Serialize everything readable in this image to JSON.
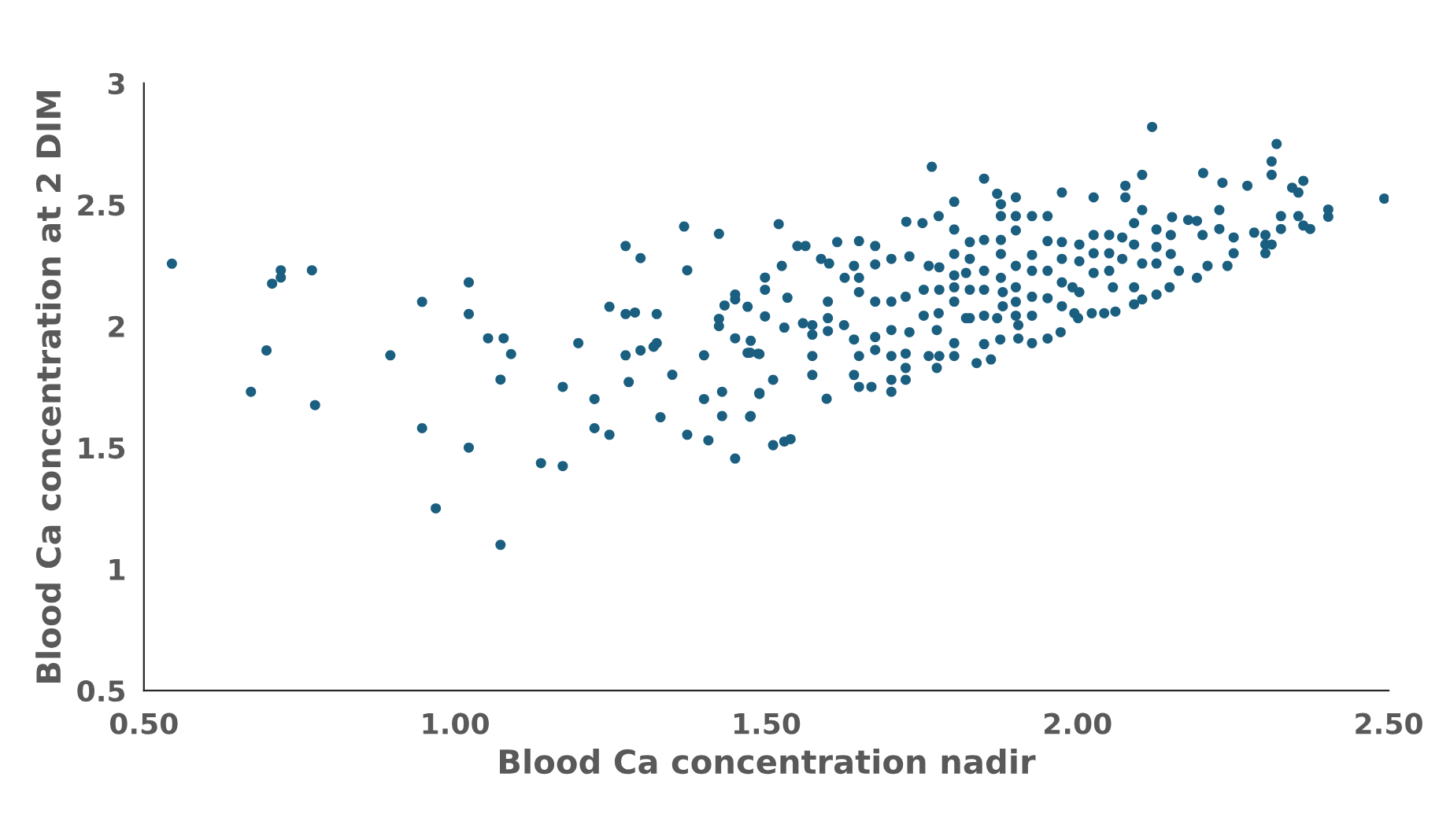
{
  "chart_data": {
    "type": "scatter",
    "xlabel": "Blood Ca concentration nadir",
    "ylabel": "Blood Ca concentration at 2 DIM",
    "xlim": [
      0.5,
      2.5
    ],
    "xticks": [
      {
        "value": 0.5,
        "label": "0.50"
      },
      {
        "value": 1.0,
        "label": "1.00"
      },
      {
        "value": 1.5,
        "label": "1.50"
      },
      {
        "value": 2.0,
        "label": "2.00"
      },
      {
        "value": 2.5,
        "label": "2.50"
      }
    ],
    "ylim": [
      0.5,
      3
    ],
    "yticks": [
      0.5,
      1,
      1.5,
      2,
      2.5,
      3
    ],
    "grid": false,
    "legend": false,
    "marker": "circle",
    "series": [
      {
        "color": "#1a5e80",
        "x": [
          0.545,
          0.706,
          0.72,
          0.72,
          0.77,
          0.697,
          0.672,
          0.775,
          0.896,
          0.947,
          0.947,
          0.969,
          1.022,
          1.022,
          1.022,
          1.053,
          1.078,
          1.09,
          1.073,
          1.073,
          1.138,
          1.173,
          1.173,
          1.198,
          1.224,
          1.224,
          1.248,
          1.248,
          1.274,
          1.298,
          1.274,
          1.289,
          1.324,
          1.274,
          1.298,
          1.279,
          1.319,
          1.324,
          1.33,
          1.349,
          1.368,
          1.373,
          1.373,
          1.4,
          1.4,
          1.407,
          1.424,
          1.424,
          1.424,
          1.433,
          1.45,
          1.45,
          1.45,
          1.429,
          1.429,
          1.45,
          1.47,
          1.475,
          1.47,
          1.489,
          1.475,
          1.489,
          1.498,
          1.498,
          1.498,
          1.52,
          1.766,
          1.85,
          1.871,
          1.901,
          1.975,
          2.026,
          2.077,
          2.104,
          2.077,
          2.104,
          2.202,
          2.233,
          2.273,
          2.312,
          2.312,
          2.12,
          2.32,
          2.345,
          2.355,
          2.363,
          2.403,
          2.403,
          2.493,
          2.327,
          2.355,
          2.363,
          2.374,
          2.284,
          2.302,
          2.302,
          2.302,
          2.312,
          2.327,
          2.228,
          2.228,
          2.251,
          2.251,
          2.241,
          2.209,
          2.192,
          2.201,
          2.178,
          2.192,
          2.152,
          2.127,
          2.127,
          2.127,
          2.15,
          2.15,
          2.163,
          2.148,
          2.127,
          2.104,
          2.091,
          2.091,
          2.104,
          2.091,
          2.091,
          2.072,
          2.072,
          2.051,
          2.051,
          2.051,
          2.057,
          2.061,
          2.043,
          2.023,
          2.026,
          2.026,
          2.026,
          2.003,
          2.003,
          2.003,
          2.001,
          1.975,
          1.975,
          1.975,
          1.975,
          1.992,
          1.995,
          1.973,
          1.952,
          1.952,
          1.952,
          1.952,
          1.952,
          1.927,
          1.927,
          1.927,
          1.927,
          1.927,
          1.927,
          1.905,
          1.905,
          1.901,
          1.901,
          1.901,
          1.901,
          1.901,
          1.901,
          1.877,
          1.877,
          1.877,
          1.877,
          1.877,
          1.88,
          1.88,
          1.871,
          1.876,
          1.85,
          1.85,
          1.85,
          1.85,
          1.85,
          1.827,
          1.827,
          1.827,
          1.827,
          1.838,
          1.861,
          1.802,
          1.802,
          1.802,
          1.802,
          1.802,
          1.802,
          1.802,
          1.802,
          1.821,
          1.821,
          1.777,
          1.751,
          1.725,
          1.778,
          1.761,
          1.778,
          1.753,
          1.753,
          1.777,
          1.774,
          1.761,
          1.778,
          1.774,
          1.73,
          1.73,
          1.701,
          1.701,
          1.701,
          1.701,
          1.701,
          1.701,
          1.724,
          1.724,
          1.724,
          1.724,
          1.675,
          1.675,
          1.675,
          1.675,
          1.675,
          1.649,
          1.649,
          1.649,
          1.649,
          1.669,
          1.649,
          1.641,
          1.641,
          1.641,
          1.614,
          1.601,
          1.599,
          1.599,
          1.599,
          1.597,
          1.626,
          1.625,
          1.574,
          1.574,
          1.574,
          1.574,
          1.559,
          1.588,
          1.55,
          1.563,
          1.525,
          1.534,
          1.529,
          1.487,
          1.474,
          1.511,
          1.489,
          1.474,
          1.511,
          1.529,
          1.539
        ],
        "values": [
          2.257,
          2.175,
          2.23,
          2.2,
          2.23,
          1.9,
          1.73,
          1.675,
          1.88,
          2.1,
          1.58,
          1.25,
          2.18,
          2.05,
          1.5,
          1.95,
          1.95,
          1.885,
          1.78,
          1.1,
          1.436,
          1.424,
          1.75,
          1.93,
          1.7,
          1.58,
          1.553,
          2.08,
          2.33,
          2.28,
          2.05,
          2.056,
          2.05,
          1.88,
          1.9,
          1.77,
          1.915,
          1.93,
          1.625,
          1.8,
          2.41,
          2.23,
          1.553,
          1.88,
          1.7,
          1.53,
          2.38,
          2.03,
          2.0,
          2.085,
          2.13,
          2.11,
          1.95,
          1.73,
          1.63,
          1.455,
          2.08,
          1.94,
          1.89,
          1.885,
          1.63,
          1.725,
          2.2,
          2.15,
          2.04,
          2.42,
          2.656,
          2.607,
          2.545,
          2.53,
          2.55,
          2.53,
          2.578,
          2.623,
          2.53,
          2.478,
          2.63,
          2.59,
          2.578,
          2.678,
          2.623,
          2.82,
          2.75,
          2.57,
          2.55,
          2.598,
          2.48,
          2.45,
          2.525,
          2.453,
          2.453,
          2.414,
          2.4,
          2.385,
          2.375,
          2.336,
          2.3,
          2.336,
          2.4,
          2.478,
          2.4,
          2.365,
          2.3,
          2.248,
          2.248,
          2.199,
          2.375,
          2.437,
          2.433,
          2.449,
          2.398,
          2.326,
          2.258,
          2.375,
          2.297,
          2.228,
          2.16,
          2.13,
          2.11,
          2.424,
          2.336,
          2.258,
          2.16,
          2.09,
          2.365,
          2.277,
          2.375,
          2.3,
          2.228,
          2.16,
          2.06,
          2.053,
          2.053,
          2.375,
          2.3,
          2.219,
          2.336,
          2.267,
          2.14,
          2.033,
          2.346,
          2.277,
          2.18,
          2.082,
          2.16,
          2.053,
          1.975,
          1.949,
          2.453,
          2.35,
          2.228,
          2.115,
          2.453,
          2.293,
          2.228,
          2.121,
          2.043,
          1.93,
          1.949,
          2.004,
          2.453,
          2.394,
          2.248,
          2.16,
          2.1,
          2.043,
          2.502,
          2.453,
          2.355,
          2.297,
          2.199,
          2.14,
          2.082,
          2.033,
          1.945,
          2.355,
          2.228,
          2.15,
          2.043,
          1.926,
          2.346,
          2.277,
          2.15,
          2.033,
          1.848,
          1.863,
          2.512,
          2.398,
          2.297,
          2.209,
          2.16,
          2.101,
          1.93,
          1.877,
          2.219,
          2.033,
          2.453,
          2.424,
          2.43,
          2.242,
          2.248,
          2.15,
          2.15,
          2.043,
          2.053,
          1.984,
          1.877,
          1.877,
          1.828,
          2.287,
          1.975,
          2.277,
          2.101,
          1.984,
          1.877,
          1.779,
          1.73,
          2.121,
          1.887,
          1.828,
          1.779,
          2.33,
          2.254,
          2.101,
          1.955,
          1.902,
          2.35,
          2.199,
          2.14,
          1.877,
          1.75,
          1.75,
          2.248,
          1.945,
          1.799,
          2.346,
          2.258,
          2.101,
          2.033,
          1.98,
          1.701,
          2.199,
          2.004,
          2.004,
          1.965,
          1.877,
          1.799,
          2.012,
          2.277,
          2.33,
          2.33,
          2.248,
          2.117,
          1.994,
          1.887,
          1.891,
          1.779,
          1.721,
          1.627,
          1.51,
          1.525,
          1.535
        ]
      }
    ]
  }
}
